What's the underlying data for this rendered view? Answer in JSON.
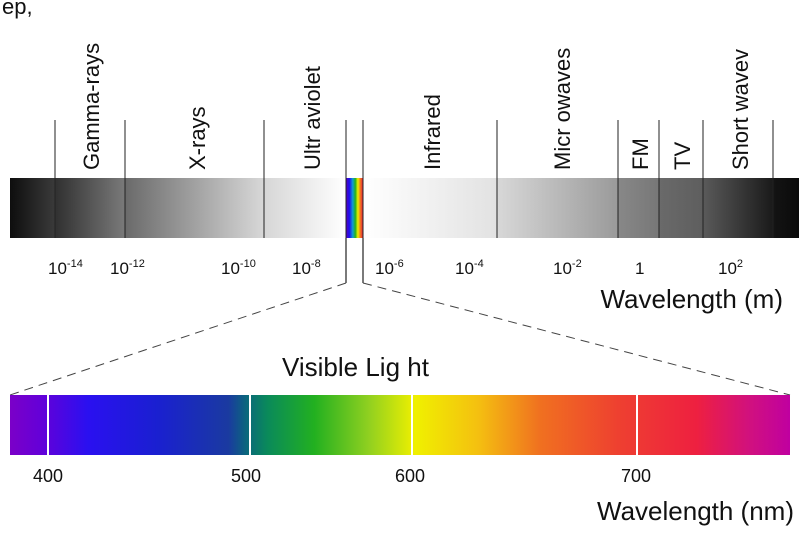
{
  "header": {
    "partial_text": "ep, "
  },
  "spectrum": {
    "regions": [
      "Gamma-rays",
      "X-rays",
      "Ultr aviolet",
      "Infrared",
      "Micr owaves",
      "FM",
      "TV",
      "Short wavev"
    ],
    "scale_labels": [
      {
        "base": "10",
        "exp": "-14"
      },
      {
        "base": "10",
        "exp": "-12"
      },
      {
        "base": "10",
        "exp": "-10"
      },
      {
        "base": "10",
        "exp": "-8"
      },
      {
        "base": "10",
        "exp": "-6"
      },
      {
        "base": "10",
        "exp": "-4"
      },
      {
        "base": "10",
        "exp": "-2"
      },
      {
        "base": "1",
        "exp": ""
      },
      {
        "base": "10",
        "exp": "2"
      }
    ],
    "axis_label": "Wavelength (m)"
  },
  "visible": {
    "title": "Visible Lig ht",
    "ticks": [
      "400",
      "500",
      "600",
      "700"
    ],
    "axis_label": "Wavelength (nm)"
  },
  "colors": {
    "violet": "#7b00c8",
    "blue": "#1a10f0",
    "teal": "#0a6a7a",
    "green": "#22b020",
    "yellow": "#f0f000",
    "orange": "#f07020",
    "red": "#ee2040",
    "magenta": "#c000a0"
  }
}
